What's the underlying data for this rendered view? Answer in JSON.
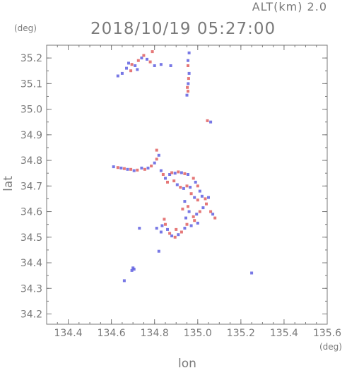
{
  "header": {
    "altitude_label": "ALT(km)  2.0",
    "datetime": "2018/10/19 05:27:00"
  },
  "chart_data": {
    "type": "scatter",
    "xlabel": "lon",
    "ylabel": "lat",
    "x_unit": "(deg)",
    "y_unit": "(deg)",
    "xlim": [
      134.3,
      135.6
    ],
    "ylim": [
      34.16,
      35.25
    ],
    "xticks": [
      "134.4",
      "134.6",
      "134.8",
      "135.0",
      "135.2",
      "135.4",
      "135.6"
    ],
    "yticks": [
      "34.2",
      "34.3",
      "34.4",
      "34.5",
      "34.6",
      "34.7",
      "34.8",
      "34.9",
      "35.0",
      "35.1",
      "35.2"
    ],
    "grid": false,
    "colors": {
      "positive": "#e06060",
      "negative": "#6060e0",
      "axis": "#7a7a7a"
    },
    "series": [
      {
        "values": [
          {
            "x": 134.61,
            "y": 34.775,
            "s": "n"
          },
          {
            "x": 134.63,
            "y": 34.772,
            "s": "p"
          },
          {
            "x": 134.645,
            "y": 34.77,
            "s": "n"
          },
          {
            "x": 134.66,
            "y": 34.768,
            "s": "p"
          },
          {
            "x": 134.675,
            "y": 34.765,
            "s": "n"
          },
          {
            "x": 134.69,
            "y": 34.765,
            "s": "p"
          },
          {
            "x": 134.705,
            "y": 34.76,
            "s": "n"
          },
          {
            "x": 134.72,
            "y": 34.762,
            "s": "p"
          },
          {
            "x": 134.74,
            "y": 34.77,
            "s": "n"
          },
          {
            "x": 134.755,
            "y": 34.765,
            "s": "p"
          },
          {
            "x": 134.77,
            "y": 34.77,
            "s": "n"
          },
          {
            "x": 134.785,
            "y": 34.778,
            "s": "p"
          },
          {
            "x": 134.8,
            "y": 34.79,
            "s": "n"
          },
          {
            "x": 134.81,
            "y": 34.805,
            "s": "p"
          },
          {
            "x": 134.82,
            "y": 34.82,
            "s": "n"
          },
          {
            "x": 134.81,
            "y": 34.84,
            "s": "p"
          },
          {
            "x": 134.83,
            "y": 34.76,
            "s": "n"
          },
          {
            "x": 134.84,
            "y": 34.745,
            "s": "p"
          },
          {
            "x": 134.85,
            "y": 34.73,
            "s": "n"
          },
          {
            "x": 134.86,
            "y": 34.715,
            "s": "p"
          },
          {
            "x": 134.87,
            "y": 34.745,
            "s": "n"
          },
          {
            "x": 134.88,
            "y": 34.752,
            "s": "p"
          },
          {
            "x": 134.895,
            "y": 34.75,
            "s": "n"
          },
          {
            "x": 134.91,
            "y": 34.755,
            "s": "p"
          },
          {
            "x": 134.925,
            "y": 34.752,
            "s": "n"
          },
          {
            "x": 134.94,
            "y": 34.748,
            "s": "p"
          },
          {
            "x": 134.955,
            "y": 34.745,
            "s": "n"
          },
          {
            "x": 134.89,
            "y": 34.72,
            "s": "p"
          },
          {
            "x": 134.905,
            "y": 34.705,
            "s": "n"
          },
          {
            "x": 134.92,
            "y": 34.695,
            "s": "p"
          },
          {
            "x": 134.935,
            "y": 34.69,
            "s": "n"
          },
          {
            "x": 134.95,
            "y": 34.7,
            "s": "p"
          },
          {
            "x": 134.965,
            "y": 34.695,
            "s": "n"
          },
          {
            "x": 134.98,
            "y": 34.73,
            "s": "p"
          },
          {
            "x": 134.99,
            "y": 34.715,
            "s": "n"
          },
          {
            "x": 135.0,
            "y": 34.7,
            "s": "p"
          },
          {
            "x": 135.01,
            "y": 34.68,
            "s": "n"
          },
          {
            "x": 134.97,
            "y": 34.67,
            "s": "p"
          },
          {
            "x": 134.985,
            "y": 34.655,
            "s": "n"
          },
          {
            "x": 135.0,
            "y": 34.645,
            "s": "p"
          },
          {
            "x": 135.02,
            "y": 34.66,
            "s": "n"
          },
          {
            "x": 135.035,
            "y": 34.65,
            "s": "p"
          },
          {
            "x": 135.05,
            "y": 34.655,
            "s": "n"
          },
          {
            "x": 135.04,
            "y": 34.63,
            "s": "p"
          },
          {
            "x": 135.025,
            "y": 34.615,
            "s": "n"
          },
          {
            "x": 135.01,
            "y": 34.6,
            "s": "p"
          },
          {
            "x": 134.995,
            "y": 34.59,
            "s": "n"
          },
          {
            "x": 134.98,
            "y": 34.58,
            "s": "p"
          },
          {
            "x": 134.96,
            "y": 34.6,
            "s": "n"
          },
          {
            "x": 134.955,
            "y": 34.62,
            "s": "p"
          },
          {
            "x": 134.94,
            "y": 34.64,
            "s": "n"
          },
          {
            "x": 134.93,
            "y": 34.61,
            "s": "p"
          },
          {
            "x": 134.945,
            "y": 34.575,
            "s": "n"
          },
          {
            "x": 134.95,
            "y": 34.55,
            "s": "p"
          },
          {
            "x": 134.94,
            "y": 34.535,
            "s": "n"
          },
          {
            "x": 134.925,
            "y": 34.52,
            "s": "p"
          },
          {
            "x": 134.91,
            "y": 34.51,
            "s": "n"
          },
          {
            "x": 134.895,
            "y": 34.5,
            "s": "p"
          },
          {
            "x": 134.88,
            "y": 34.505,
            "s": "n"
          },
          {
            "x": 134.87,
            "y": 34.515,
            "s": "p"
          },
          {
            "x": 134.86,
            "y": 34.53,
            "s": "n"
          },
          {
            "x": 134.85,
            "y": 34.55,
            "s": "p"
          },
          {
            "x": 134.835,
            "y": 34.545,
            "s": "n"
          },
          {
            "x": 134.845,
            "y": 34.57,
            "s": "p"
          },
          {
            "x": 134.83,
            "y": 34.52,
            "s": "n"
          },
          {
            "x": 134.9,
            "y": 34.53,
            "s": "p"
          },
          {
            "x": 134.97,
            "y": 34.545,
            "s": "n"
          },
          {
            "x": 134.985,
            "y": 34.565,
            "s": "p"
          },
          {
            "x": 135.0,
            "y": 34.555,
            "s": "n"
          },
          {
            "x": 135.06,
            "y": 34.6,
            "s": "p"
          },
          {
            "x": 135.07,
            "y": 34.59,
            "s": "n"
          },
          {
            "x": 135.08,
            "y": 34.575,
            "s": "p"
          },
          {
            "x": 134.73,
            "y": 34.535,
            "s": "n"
          },
          {
            "x": 134.81,
            "y": 34.535,
            "s": "n"
          },
          {
            "x": 134.82,
            "y": 34.445,
            "s": "n"
          },
          {
            "x": 134.7,
            "y": 34.38,
            "s": "n"
          },
          {
            "x": 134.695,
            "y": 34.37,
            "s": "n"
          },
          {
            "x": 134.705,
            "y": 34.375,
            "s": "n"
          },
          {
            "x": 134.66,
            "y": 34.33,
            "s": "n"
          },
          {
            "x": 135.25,
            "y": 34.36,
            "s": "n"
          },
          {
            "x": 135.045,
            "y": 34.955,
            "s": "p"
          },
          {
            "x": 135.06,
            "y": 34.95,
            "s": "n"
          },
          {
            "x": 134.955,
            "y": 35.19,
            "s": "n"
          },
          {
            "x": 134.955,
            "y": 35.17,
            "s": "p"
          },
          {
            "x": 134.96,
            "y": 35.14,
            "s": "n"
          },
          {
            "x": 134.958,
            "y": 35.12,
            "s": "p"
          },
          {
            "x": 134.956,
            "y": 35.1,
            "s": "n"
          },
          {
            "x": 134.952,
            "y": 35.085,
            "s": "p"
          },
          {
            "x": 134.955,
            "y": 35.07,
            "s": "p"
          },
          {
            "x": 134.95,
            "y": 35.055,
            "s": "n"
          },
          {
            "x": 134.96,
            "y": 35.22,
            "s": "n"
          },
          {
            "x": 134.68,
            "y": 35.18,
            "s": "n"
          },
          {
            "x": 134.695,
            "y": 35.175,
            "s": "p"
          },
          {
            "x": 134.71,
            "y": 35.17,
            "s": "n"
          },
          {
            "x": 134.725,
            "y": 35.19,
            "s": "p"
          },
          {
            "x": 134.74,
            "y": 35.2,
            "s": "n"
          },
          {
            "x": 134.75,
            "y": 35.21,
            "s": "p"
          },
          {
            "x": 134.765,
            "y": 35.195,
            "s": "n"
          },
          {
            "x": 134.78,
            "y": 35.185,
            "s": "p"
          },
          {
            "x": 134.67,
            "y": 35.16,
            "s": "n"
          },
          {
            "x": 134.69,
            "y": 35.15,
            "s": "p"
          },
          {
            "x": 134.72,
            "y": 35.155,
            "s": "n"
          },
          {
            "x": 134.8,
            "y": 35.17,
            "s": "n"
          },
          {
            "x": 134.83,
            "y": 35.175,
            "s": "n"
          },
          {
            "x": 134.875,
            "y": 35.17,
            "s": "n"
          },
          {
            "x": 134.65,
            "y": 35.14,
            "s": "n"
          },
          {
            "x": 134.63,
            "y": 35.13,
            "s": "n"
          },
          {
            "x": 134.79,
            "y": 35.225,
            "s": "p"
          }
        ]
      }
    ]
  }
}
